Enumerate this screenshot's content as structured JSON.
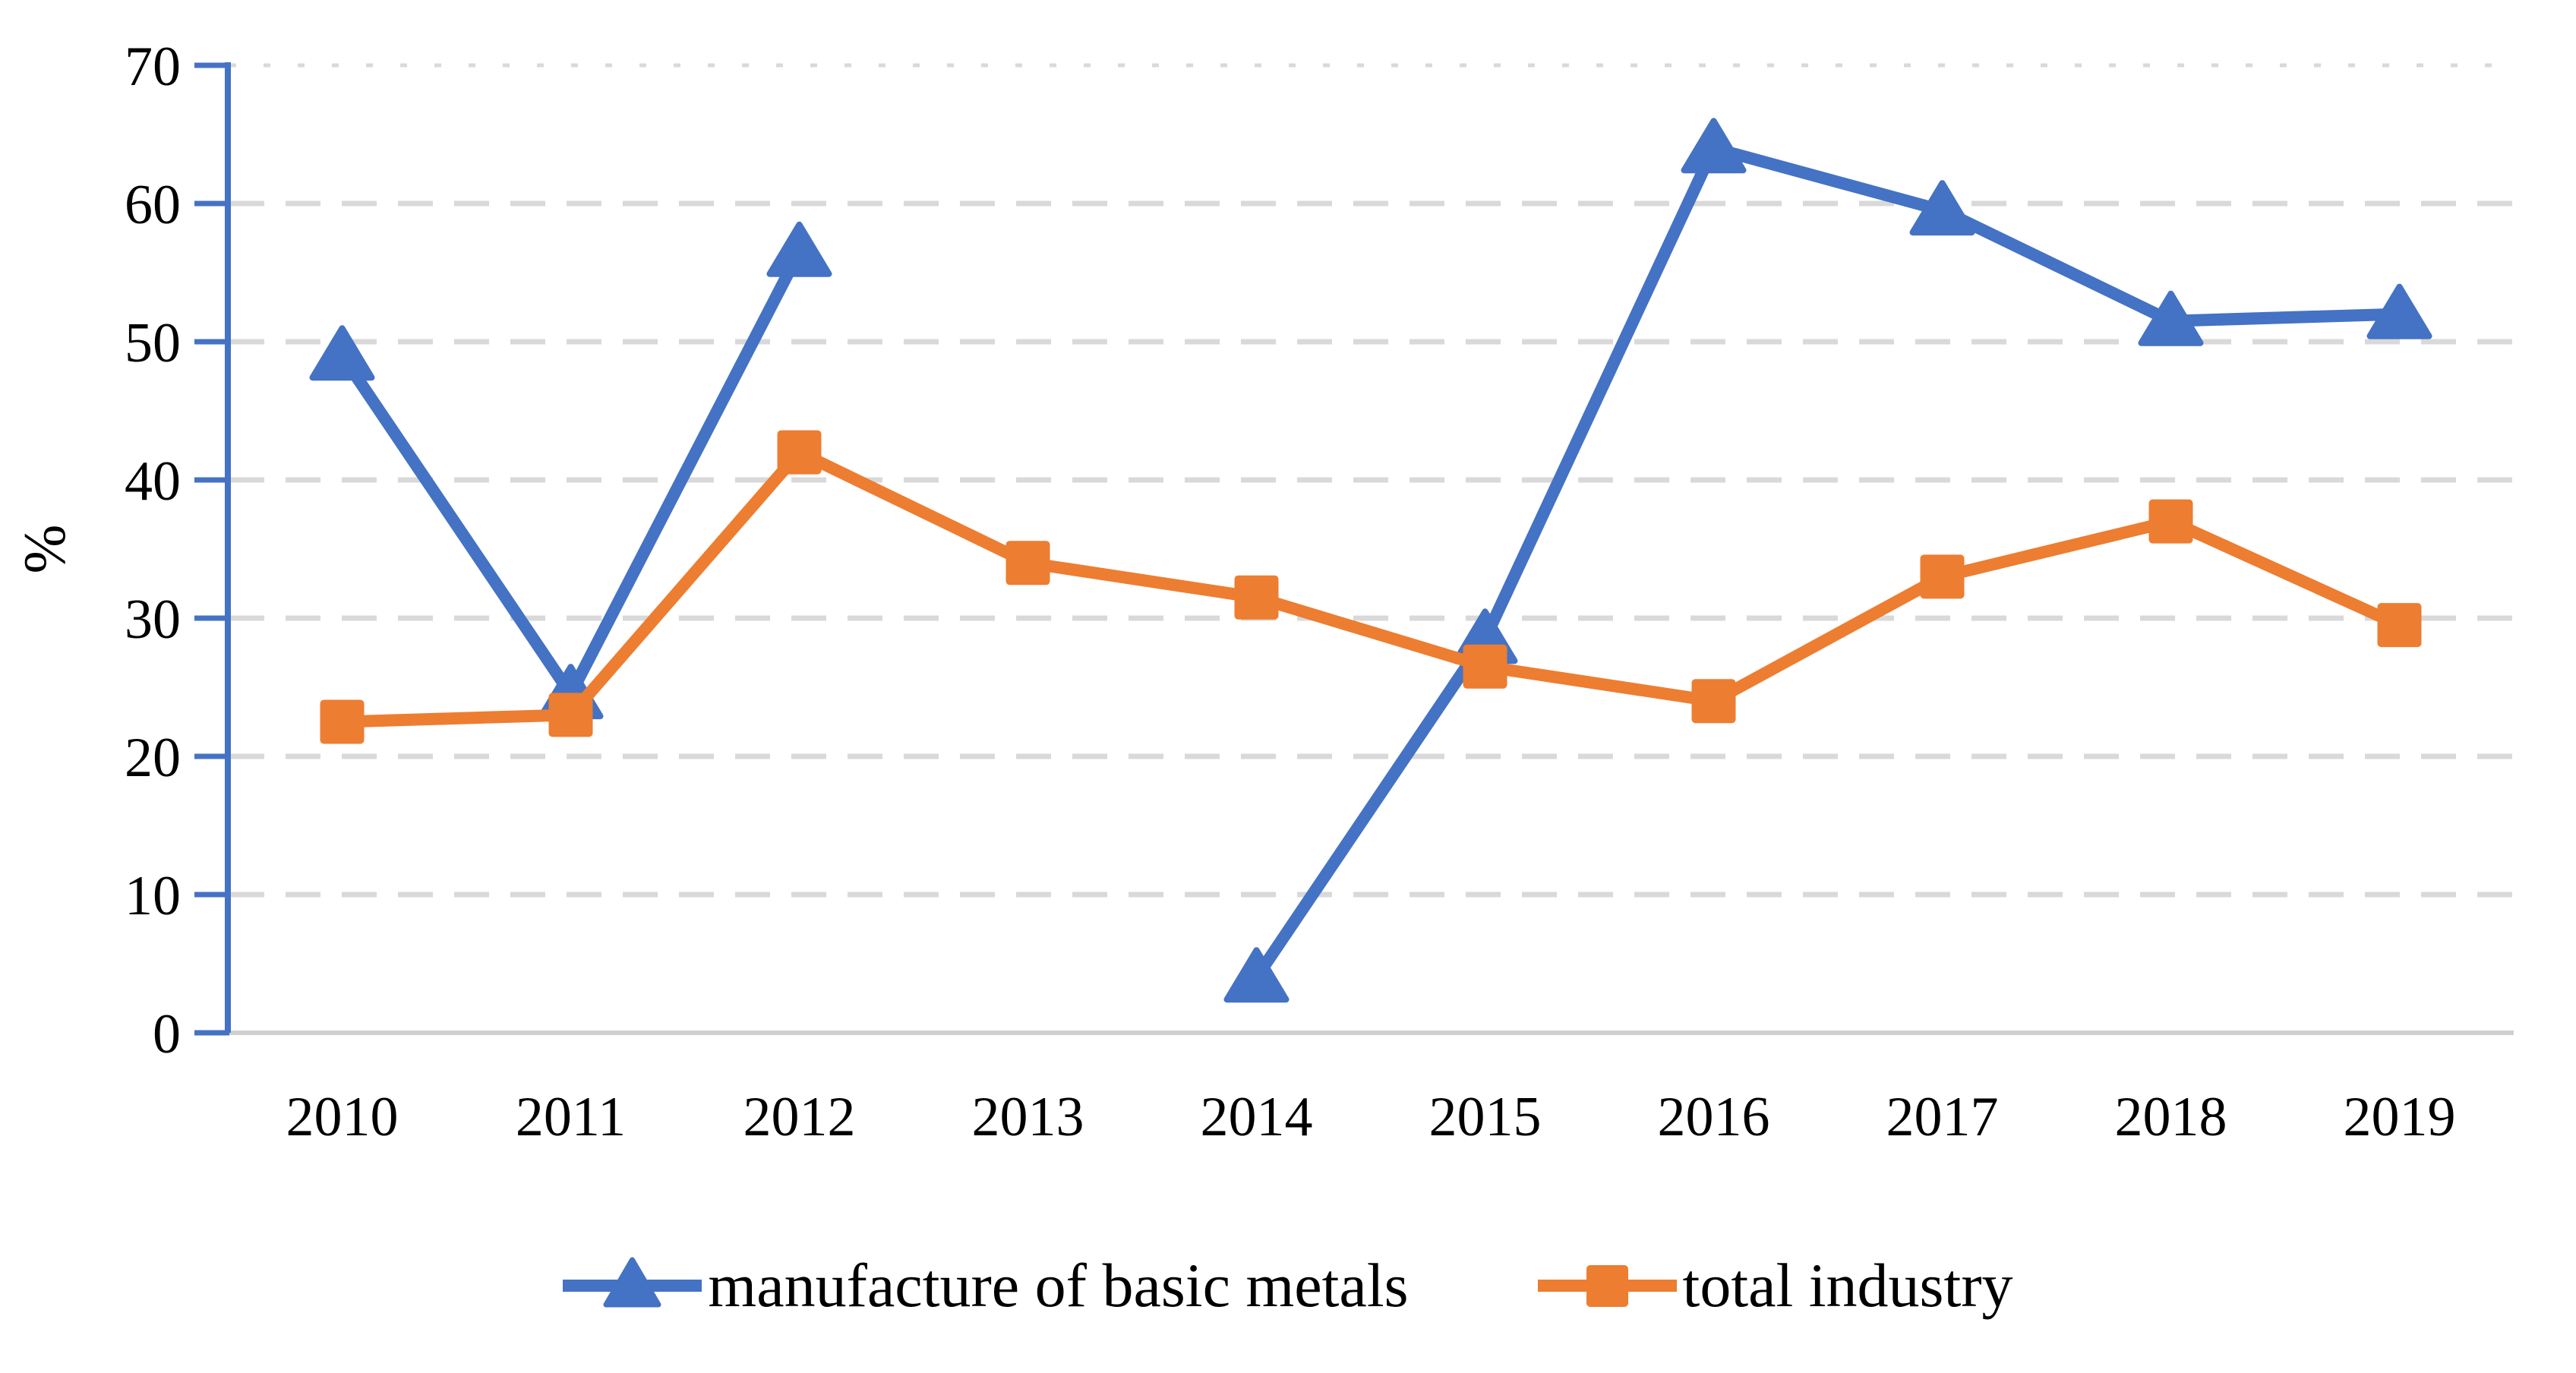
{
  "chart_data": {
    "type": "line",
    "categories": [
      "2010",
      "2011",
      "2012",
      "2013",
      "2014",
      "2015",
      "2016",
      "2017",
      "2018",
      "2019"
    ],
    "series": [
      {
        "name": "manufacture of basic metals",
        "color": "#4472C4",
        "marker": "triangle",
        "values": [
          49,
          24.5,
          56.5,
          null,
          4,
          28.5,
          64,
          59.5,
          51.5,
          52
        ]
      },
      {
        "name": "total industry",
        "color": "#ED7D31",
        "marker": "square",
        "values": [
          22.5,
          23,
          42,
          34,
          31.5,
          26.5,
          24,
          33,
          37,
          29.5
        ]
      }
    ],
    "ylabel": "%",
    "ylim": [
      0,
      70
    ],
    "ytick_step": 10,
    "yticks": [
      "0",
      "10",
      "20",
      "30",
      "40",
      "50",
      "60",
      "70"
    ],
    "grid": "horizontal dashed gridlines, topmost (70) dotted",
    "legend_position": "bottom"
  },
  "styles": {
    "axis_color": "#4472C4",
    "grid_color": "#D9D9D9",
    "baseline_color": "#D0D0D0",
    "text_color": "#000000",
    "background": "#FFFFFF"
  }
}
